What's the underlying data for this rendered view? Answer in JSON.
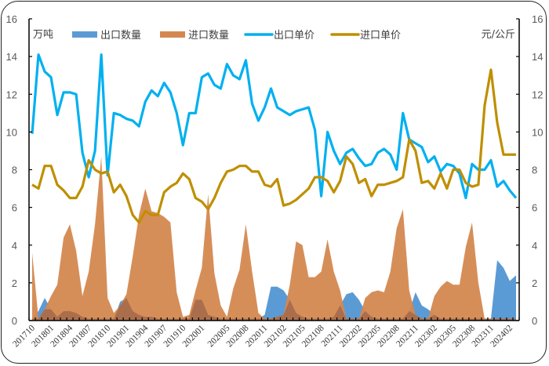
{
  "chart_data": {
    "type": "combo-area-line",
    "title": "",
    "left_axis": {
      "label": "万吨",
      "ticks": [
        0,
        2,
        4,
        6,
        8,
        10,
        12,
        14,
        16
      ],
      "range": [
        0,
        16
      ]
    },
    "right_axis": {
      "label": "元/公斤",
      "ticks": [
        0,
        2,
        4,
        6,
        8,
        10,
        12,
        14,
        16
      ],
      "range": [
        0,
        16
      ]
    },
    "legend": [
      "出口数量",
      "进口数量",
      "出口单价",
      "进口单价"
    ],
    "legend_position": "top",
    "colors": {
      "export_qty": "#5b9bd5",
      "import_qty": "#d4884f",
      "export_price": "#00b0f0",
      "import_price": "#bf8f00"
    },
    "x_tick_labels": [
      "201710",
      "201801",
      "201804",
      "201807",
      "201810",
      "201901",
      "201904",
      "201907",
      "201910",
      "202001",
      "202005",
      "202008",
      "202011",
      "202102",
      "202105",
      "202108",
      "202111",
      "202202",
      "202205",
      "202208",
      "202211",
      "202302",
      "202305",
      "202308",
      "202311",
      "202402"
    ],
    "x_tick_index": [
      0,
      3,
      6,
      9,
      12,
      15,
      18,
      21,
      24,
      27,
      31,
      34,
      37,
      40,
      43,
      46,
      49,
      52,
      55,
      58,
      61,
      64,
      67,
      70,
      73,
      76
    ],
    "months_count": 78,
    "series": [
      {
        "name": "出口数量",
        "type": "area",
        "axis": "left",
        "values": [
          0.1,
          0.5,
          1.2,
          0.6,
          0.2,
          0.5,
          0.5,
          0.4,
          0.2,
          0.1,
          0.1,
          0.1,
          0.1,
          0.1,
          1.0,
          1.2,
          0.5,
          0.3,
          0.2,
          0.2,
          0.1,
          0.1,
          0.1,
          0.1,
          0.1,
          0.1,
          1.1,
          1.1,
          0.3,
          0.2,
          0.1,
          0.1,
          0.1,
          0.1,
          0.1,
          0.1,
          0.1,
          0.3,
          1.8,
          1.8,
          1.6,
          1.1,
          0.4,
          0.2,
          0.1,
          0.1,
          0.1,
          0.1,
          0.2,
          0.8,
          1.4,
          1.5,
          1.1,
          0.5,
          0.2,
          0.1,
          0.1,
          0.1,
          0.1,
          0.1,
          0.5,
          1.5,
          0.8,
          0.6,
          0.3,
          0.1,
          0.1,
          0.1,
          0.1,
          0.1,
          0.1,
          0.1,
          0.1,
          0.1,
          3.2,
          2.8,
          2.1,
          2.4
        ]
      },
      {
        "name": "进口数量",
        "type": "area",
        "axis": "left",
        "values": [
          3.6,
          0.1,
          0.6,
          1.3,
          1.9,
          4.4,
          5.1,
          3.7,
          1.3,
          2.6,
          5.1,
          8.7,
          1.2,
          0.4,
          0.8,
          1.4,
          3.4,
          5.6,
          7.0,
          5.8,
          5.7,
          5.5,
          5.2,
          1.5,
          0.2,
          0.3,
          1.6,
          2.8,
          6.7,
          2.5,
          0.8,
          0.2,
          1.7,
          2.7,
          5.1,
          2.6,
          0.4,
          0.1,
          0.1,
          0.2,
          0.3,
          1.9,
          4.2,
          4.0,
          2.3,
          2.3,
          2.6,
          4.3,
          2.6,
          1.6,
          0.1,
          0.1,
          0.1,
          1.2,
          1.5,
          1.6,
          1.5,
          2.6,
          4.9,
          5.9,
          1.6,
          0.3,
          0.1,
          0.1,
          1.3,
          1.8,
          2.1,
          1.9,
          1.9,
          3.9,
          5.2,
          2.0,
          0.1,
          0.1,
          0.1,
          0.1,
          0.1,
          0.1
        ]
      },
      {
        "name": "出口单价",
        "type": "line",
        "axis": "right",
        "values": [
          9.9,
          14.1,
          13.2,
          12.9,
          10.9,
          12.1,
          12.1,
          12.0,
          8.9,
          7.6,
          9.0,
          14.1,
          7.7,
          11.0,
          10.9,
          10.7,
          10.6,
          10.3,
          11.6,
          12.2,
          11.9,
          12.6,
          12.1,
          11.0,
          9.3,
          11.0,
          11.0,
          12.9,
          13.1,
          12.5,
          12.3,
          13.6,
          13.0,
          12.8,
          13.8,
          11.5,
          10.6,
          11.3,
          12.3,
          11.3,
          11.1,
          10.9,
          11.1,
          11.2,
          11.3,
          10.1,
          6.6,
          10.0,
          9.0,
          8.3,
          8.9,
          9.1,
          8.6,
          8.2,
          8.3,
          8.9,
          9.1,
          8.8,
          8.0,
          11.0,
          9.6,
          9.4,
          9.2,
          8.4,
          8.7,
          7.9,
          8.3,
          8.2,
          7.8,
          6.5,
          8.3,
          8.0,
          8.0,
          8.5,
          7.1,
          7.4,
          6.9,
          6.5
        ]
      },
      {
        "name": "进口单价",
        "type": "line",
        "axis": "right",
        "values": [
          7.2,
          7.0,
          8.2,
          8.2,
          7.2,
          6.9,
          6.5,
          6.5,
          7.1,
          8.5,
          8.0,
          7.8,
          7.9,
          6.8,
          7.2,
          6.6,
          5.6,
          5.2,
          5.8,
          5.6,
          5.6,
          6.8,
          7.1,
          7.3,
          7.8,
          7.5,
          6.5,
          6.3,
          5.9,
          6.5,
          7.3,
          7.9,
          8.0,
          8.2,
          8.2,
          7.9,
          7.9,
          7.2,
          7.1,
          7.5,
          6.1,
          6.2,
          6.4,
          6.7,
          7.0,
          7.6,
          7.6,
          7.4,
          6.8,
          7.4,
          8.7,
          8.3,
          7.3,
          7.5,
          6.6,
          7.2,
          7.2,
          7.3,
          7.4,
          7.6,
          9.6,
          9.0,
          7.3,
          7.4,
          7.0,
          7.8,
          7.0,
          8.0,
          8.0,
          7.3,
          7.1,
          7.2,
          11.4,
          13.3,
          10.5,
          8.8,
          8.8,
          8.8
        ]
      }
    ]
  }
}
